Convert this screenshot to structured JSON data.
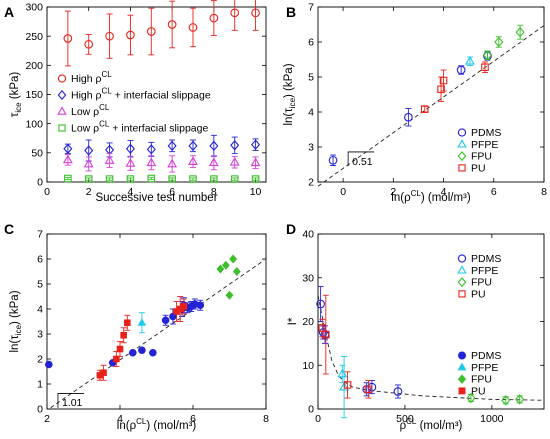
{
  "chart_data": [
    {
      "panel": "A",
      "type": "scatter",
      "xlabel": "Successive test number",
      "ylabel": "τ_ice (kPa)",
      "xlim": [
        0,
        10.5
      ],
      "ylim": [
        0,
        300
      ],
      "xticks": [
        "0",
        "2",
        "4",
        "6",
        "8",
        "10"
      ],
      "yticks": [
        "0",
        "50",
        "100",
        "150",
        "200",
        "250",
        "300"
      ],
      "legend_position": "center-left",
      "series": [
        {
          "name": "High ρ^CL",
          "marker": "circle",
          "color": "#e8221b",
          "x": [
            1,
            2,
            3,
            4,
            5,
            6,
            7,
            8,
            9,
            10
          ],
          "y": [
            246,
            236,
            250,
            252,
            258,
            270,
            265,
            281,
            290,
            290
          ],
          "err": [
            47,
            17,
            38,
            34,
            40,
            40,
            33,
            30,
            30,
            30
          ]
        },
        {
          "name": "High ρ^CL + interfacial slippage",
          "marker": "diamond",
          "color": "#2323d6",
          "x": [
            1,
            2,
            3,
            4,
            5,
            6,
            7,
            8,
            9,
            10
          ],
          "y": [
            57,
            54,
            55,
            57,
            56,
            62,
            62,
            62,
            63,
            64
          ],
          "err": [
            8,
            18,
            12,
            14,
            12,
            10,
            10,
            18,
            14,
            10
          ]
        },
        {
          "name": "Low ρ^CL",
          "marker": "triangle",
          "color": "#d63fd6",
          "x": [
            1,
            2,
            3,
            4,
            5,
            6,
            7,
            8,
            9,
            10
          ],
          "y": [
            38,
            31,
            37,
            32,
            33,
            31,
            35,
            33,
            34,
            33
          ],
          "err": [
            9,
            12,
            12,
            12,
            12,
            14,
            10,
            12,
            10,
            10
          ]
        },
        {
          "name": "Low ρ^CL + interfacial slippage",
          "marker": "square",
          "color": "#3cbf2a",
          "x": [
            1,
            2,
            3,
            4,
            5,
            6,
            7,
            8,
            9,
            10
          ],
          "y": [
            6,
            5,
            5,
            5,
            6,
            5,
            5,
            5,
            5,
            5
          ],
          "err": [
            2,
            2,
            2,
            2,
            2,
            2,
            2,
            2,
            2,
            2
          ]
        }
      ]
    },
    {
      "panel": "B",
      "type": "scatter",
      "xlabel": "ln(ρ^CL) (mol/m³)",
      "ylabel": "ln(τ_ice) (kPa)",
      "xlim": [
        -1,
        8
      ],
      "ylim": [
        2,
        7
      ],
      "xticks": [
        "0",
        "2",
        "4",
        "6",
        "8"
      ],
      "yticks": [
        "2",
        "3",
        "4",
        "5",
        "6",
        "7"
      ],
      "legend_position": "bottom-right",
      "fit_line": {
        "style": "dashed",
        "x": [
          -1,
          8
        ],
        "y": [
          1.88,
          6.47
        ]
      },
      "slope_annotation": "0.51",
      "series": [
        {
          "name": "PDMS",
          "marker": "circle",
          "color": "#2323d6",
          "x": [
            -0.4,
            2.6,
            4.7,
            5.75
          ],
          "y": [
            2.62,
            3.85,
            5.2,
            5.6
          ],
          "err": [
            0.15,
            0.25,
            0.12,
            0.12
          ]
        },
        {
          "name": "PFPE",
          "marker": "triangle",
          "color": "#1ec8e8",
          "x": [
            5.05
          ],
          "y": [
            5.45
          ],
          "err": [
            0.12
          ]
        },
        {
          "name": "FPU",
          "marker": "diamond",
          "color": "#3cbf2a",
          "x": [
            5.75,
            6.2,
            7.05
          ],
          "y": [
            5.62,
            6.0,
            6.28
          ],
          "err": [
            0.12,
            0.15,
            0.2
          ]
        },
        {
          "name": "PU",
          "marker": "square",
          "color": "#e8221b",
          "x": [
            3.25,
            3.9,
            4.0,
            5.65
          ],
          "y": [
            4.08,
            4.65,
            4.9,
            5.28
          ],
          "err": [
            0.08,
            0.35,
            0.3,
            0.15
          ]
        }
      ]
    },
    {
      "panel": "C",
      "type": "scatter",
      "xlabel": "ln(ρ^CL) (mol/m³)",
      "ylabel": "ln(τ_ice) (kPa)",
      "xlim": [
        2,
        8
      ],
      "ylim": [
        0,
        7
      ],
      "xticks": [
        "2",
        "4",
        "6",
        "8"
      ],
      "yticks": [
        "0",
        "1",
        "2",
        "3",
        "4",
        "5",
        "6",
        "7"
      ],
      "legend_position": "bottom-right",
      "fit_line": {
        "style": "dashed",
        "x": [
          2.1,
          7.95
        ],
        "y": [
          0.05,
          5.95
        ]
      },
      "slope_annotation": "1.01",
      "series": [
        {
          "name": "PDMS",
          "marker": "circle",
          "color": "#2323d6",
          "x": [
            2.05,
            3.8,
            4.35,
            4.6,
            4.9,
            5.25,
            5.45,
            5.7,
            5.75,
            5.85,
            5.95,
            6.05,
            6.2
          ],
          "y": [
            1.78,
            1.85,
            2.25,
            2.35,
            2.25,
            3.55,
            3.7,
            4.0,
            4.15,
            4.05,
            4.1,
            4.2,
            4.15
          ],
          "err": [
            0,
            0,
            0,
            0,
            0,
            0.2,
            0.3,
            0.3,
            0.3,
            0.2,
            0.2,
            0.2,
            0.2
          ]
        },
        {
          "name": "PFPE",
          "marker": "triangle",
          "color": "#1ec8e8",
          "x": [
            4.6
          ],
          "y": [
            3.45
          ],
          "err": [
            0.4
          ]
        },
        {
          "name": "FPU",
          "marker": "diamond",
          "color": "#3cbf2a",
          "x": [
            6.75,
            6.9,
            7.0,
            7.1,
            7.2
          ],
          "y": [
            5.6,
            5.75,
            4.55,
            6.0,
            5.5
          ],
          "err": [
            0,
            0,
            0,
            0,
            0
          ]
        },
        {
          "name": "PU",
          "marker": "square",
          "color": "#e8221b",
          "x": [
            3.45,
            3.55,
            3.9,
            4.0,
            4.1,
            4.2,
            5.55,
            5.65,
            5.75
          ],
          "y": [
            1.35,
            1.45,
            2.0,
            2.4,
            2.95,
            3.45,
            3.9,
            4.0,
            4.1
          ],
          "err": [
            0.2,
            0.3,
            0.3,
            0.3,
            0.3,
            0.3,
            0.4,
            0.5,
            0.3
          ]
        }
      ]
    },
    {
      "panel": "D",
      "type": "scatter",
      "xlabel": "ρ^CL (mol/m³)",
      "ylabel": "I*",
      "xlim": [
        0,
        1300
      ],
      "ylim": [
        0,
        40
      ],
      "xticks": [
        "0",
        "500",
        "1000"
      ],
      "yticks": [
        "0",
        "10",
        "20",
        "30",
        "40"
      ],
      "legend_position": "top-right",
      "fit_line": {
        "style": "dashed",
        "x": [
          0,
          40,
          80,
          120,
          160,
          200,
          300,
          400,
          600,
          800,
          1000,
          1300
        ],
        "y": [
          26,
          18,
          11,
          7.5,
          6,
          5,
          4.2,
          3.8,
          3.0,
          2.6,
          2.2,
          2.0
        ]
      },
      "series": [
        {
          "name": "PDMS",
          "marker": "circle",
          "color": "#2323d6",
          "x": [
            15,
            30,
            40,
            280,
            310,
            460
          ],
          "y": [
            24,
            17.5,
            17,
            4.5,
            5,
            4
          ],
          "err": [
            4,
            1.5,
            2,
            1.5,
            1.5,
            1.5
          ]
        },
        {
          "name": "PFPE",
          "marker": "triangle",
          "color": "#1ec8e8",
          "x": [
            140,
            150
          ],
          "y": [
            8,
            5
          ],
          "err": [
            2,
            7
          ]
        },
        {
          "name": "FPU",
          "marker": "diamond",
          "color": "#3cbf2a",
          "x": [
            880,
            1080,
            1160
          ],
          "y": [
            2.5,
            2,
            2.2
          ],
          "err": [
            0.8,
            0.8,
            0.8
          ]
        },
        {
          "name": "PU",
          "marker": "square",
          "color": "#e8221b",
          "x": [
            25,
            45,
            170,
            290
          ],
          "y": [
            18.5,
            17,
            5.5,
            4.5
          ],
          "err": [
            2,
            9,
            3,
            2
          ]
        }
      ]
    }
  ]
}
